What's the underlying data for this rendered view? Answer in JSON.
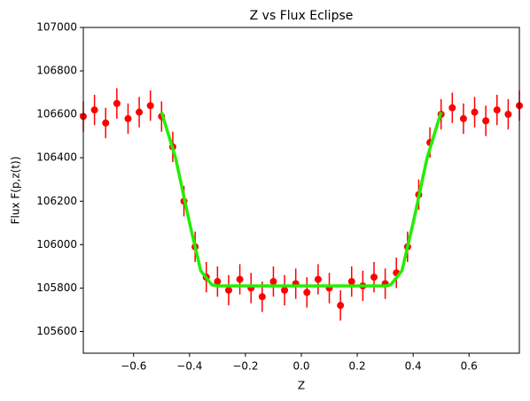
{
  "chart_data": {
    "type": "scatter",
    "title": "Z vs Flux Eclipse",
    "xlabel": "Z",
    "ylabel": "Flux F(p,z(t))",
    "xlim": [
      -0.78,
      0.78
    ],
    "xticks": [
      {
        "value": -0.6,
        "label": "−0.6"
      },
      {
        "value": -0.4,
        "label": "−0.4"
      },
      {
        "value": -0.2,
        "label": "−0.2"
      },
      {
        "value": 0,
        "label": "0.0"
      },
      0.2,
      0.4,
      0.6
    ],
    "ylim": [
      105500,
      107000
    ],
    "yticks": [
      105600,
      105800,
      106000,
      106200,
      106400,
      106600,
      106800,
      107000
    ],
    "points": {
      "color": "#ff0000",
      "x": [
        -0.78,
        -0.74,
        -0.7,
        -0.66,
        -0.62,
        -0.58,
        -0.54,
        -0.5,
        -0.46,
        -0.42,
        -0.38,
        -0.34,
        -0.3,
        -0.26,
        -0.22,
        -0.18,
        -0.14,
        -0.1,
        -0.06,
        -0.02,
        0.02,
        0.06,
        0.1,
        0.14,
        0.18,
        0.22,
        0.26,
        0.3,
        0.34,
        0.38,
        0.42,
        0.46,
        0.5,
        0.54,
        0.58,
        0.62,
        0.66,
        0.7,
        0.74,
        0.78
      ],
      "values": [
        106590,
        106620,
        106560,
        106650,
        106580,
        106610,
        106640,
        106590,
        106450,
        106200,
        105990,
        105850,
        105830,
        105790,
        105840,
        105800,
        105760,
        105830,
        105790,
        105820,
        105780,
        105840,
        105800,
        105720,
        105830,
        105810,
        105850,
        105820,
        105870,
        105990,
        106230,
        106470,
        106600,
        106630,
        106580,
        106610,
        106570,
        106620,
        106600,
        106640
      ],
      "yerr": 70
    },
    "model": {
      "color": "#22ee00",
      "x": [
        -0.5,
        -0.45,
        -0.4,
        -0.36,
        -0.32,
        -0.3,
        0.3,
        0.32,
        0.36,
        0.4,
        0.45,
        0.5
      ],
      "values": [
        106610,
        106400,
        106100,
        105880,
        105815,
        105810,
        105810,
        105815,
        105880,
        106100,
        106400,
        106610
      ]
    }
  }
}
